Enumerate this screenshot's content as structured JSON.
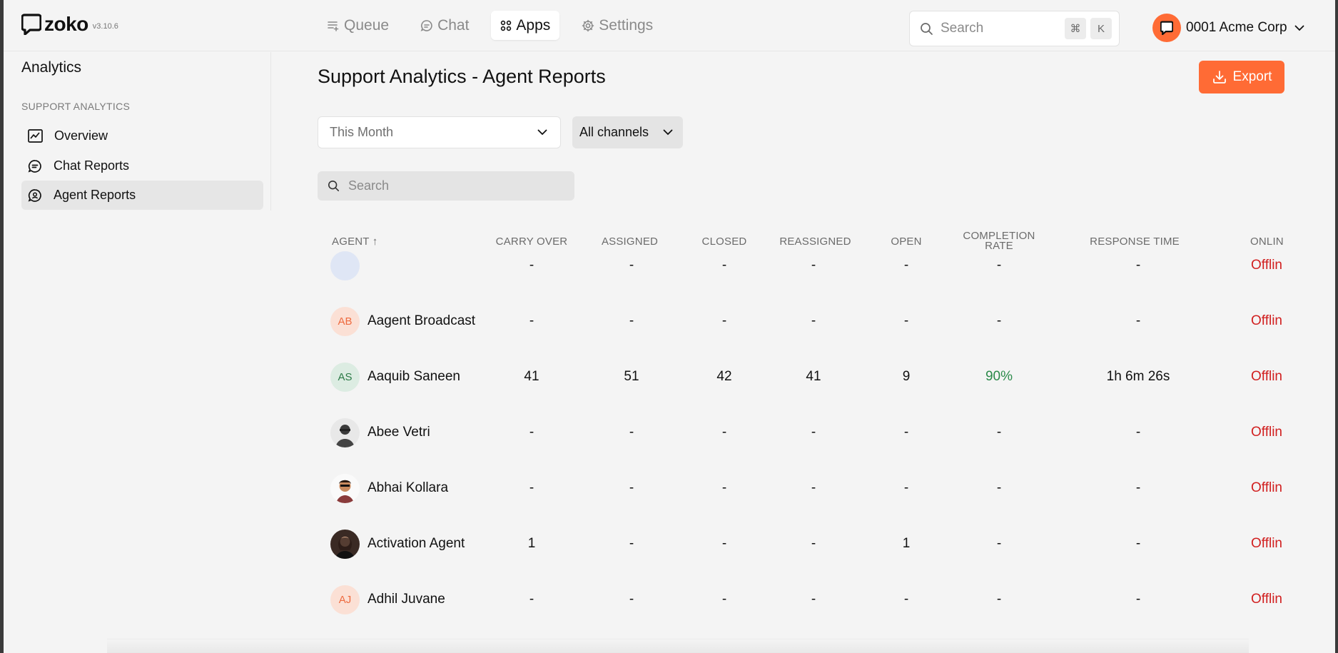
{
  "app": {
    "logo_text": "zoko",
    "version": "v3.10.6"
  },
  "nav": {
    "items": [
      {
        "label": "Queue",
        "icon": "queue-icon"
      },
      {
        "label": "Chat",
        "icon": "chat-icon"
      },
      {
        "label": "Apps",
        "icon": "apps-icon",
        "active": true
      },
      {
        "label": "Settings",
        "icon": "gear-icon"
      }
    ]
  },
  "global_search": {
    "placeholder": "Search",
    "shortcut_keys": [
      "⌘",
      "K"
    ]
  },
  "account": {
    "name": "0001 Acme Corp"
  },
  "sidebar": {
    "title": "Analytics",
    "section": "SUPPORT ANALYTICS",
    "items": [
      {
        "label": "Overview",
        "icon": "chart-line-icon"
      },
      {
        "label": "Chat Reports",
        "icon": "chat-report-icon"
      },
      {
        "label": "Agent Reports",
        "icon": "agent-report-icon",
        "active": true
      }
    ]
  },
  "main": {
    "title": "Support Analytics - Agent Reports",
    "export_label": "Export",
    "period_filter": "This Month",
    "channel_filter": "All channels",
    "search_placeholder": "Search"
  },
  "table": {
    "headers": {
      "agent": "AGENT ↑",
      "carry_over": "CARRY OVER",
      "assigned": "ASSIGNED",
      "closed": "CLOSED",
      "reassigned": "REASSIGNED",
      "open": "OPEN",
      "completion_rate_1": "COMPLETION",
      "completion_rate_2": "RATE",
      "response_time": "RESPONSE TIME",
      "online": "ONLIN"
    },
    "rows": [
      {
        "name": "",
        "initials": "",
        "avatar_type": "blank",
        "carry_over": "-",
        "assigned": "-",
        "closed": "-",
        "reassigned": "-",
        "open": "-",
        "completion_rate": "-",
        "response_time": "-",
        "status": "Offlin"
      },
      {
        "name": "Aagent Broadcast",
        "initials": "AB",
        "avatar_type": "initials-orange",
        "carry_over": "-",
        "assigned": "-",
        "closed": "-",
        "reassigned": "-",
        "open": "-",
        "completion_rate": "-",
        "response_time": "-",
        "status": "Offlin"
      },
      {
        "name": "Aaquib Saneen",
        "initials": "AS",
        "avatar_type": "initials-green",
        "carry_over": "41",
        "assigned": "51",
        "closed": "42",
        "reassigned": "41",
        "open": "9",
        "completion_rate": "90%",
        "response_time": "1h 6m 26s",
        "status": "Offlin"
      },
      {
        "name": "Abee Vetri",
        "initials": "",
        "avatar_type": "photo-1",
        "carry_over": "-",
        "assigned": "-",
        "closed": "-",
        "reassigned": "-",
        "open": "-",
        "completion_rate": "-",
        "response_time": "-",
        "status": "Offlin"
      },
      {
        "name": "Abhai Kollara",
        "initials": "",
        "avatar_type": "photo-2",
        "carry_over": "-",
        "assigned": "-",
        "closed": "-",
        "reassigned": "-",
        "open": "-",
        "completion_rate": "-",
        "response_time": "-",
        "status": "Offlin"
      },
      {
        "name": "Activation Agent",
        "initials": "",
        "avatar_type": "photo-3",
        "carry_over": "1",
        "assigned": "-",
        "closed": "-",
        "reassigned": "-",
        "open": "1",
        "completion_rate": "-",
        "response_time": "-",
        "status": "Offlin"
      },
      {
        "name": "Adhil Juvane",
        "initials": "AJ",
        "avatar_type": "initials-orange",
        "carry_over": "-",
        "assigned": "-",
        "closed": "-",
        "reassigned": "-",
        "open": "-",
        "completion_rate": "-",
        "response_time": "-",
        "status": "Offlin"
      }
    ]
  },
  "colors": {
    "accent": "#ff6b35",
    "offline": "#d11f1f",
    "positive": "#2b8a4a"
  }
}
